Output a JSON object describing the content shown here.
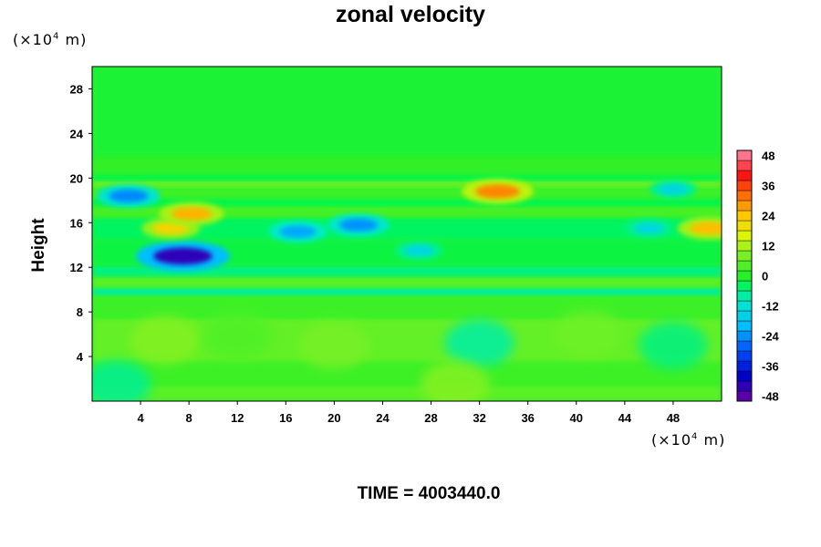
{
  "chart_data": {
    "type": "heatmap",
    "title": "zonal velocity",
    "xlabel": "",
    "ylabel": "Height",
    "x_unit_label": "(×10⁴ m)",
    "y_unit_label": "(×10⁴ m)",
    "x_unit_base": "(×10",
    "x_unit_exp": "4",
    "x_unit_tail": " m)",
    "y_unit_base": "(×10",
    "y_unit_exp": "4",
    "y_unit_tail": " m)",
    "xlim": [
      0,
      52
    ],
    "ylim": [
      0,
      30
    ],
    "x_ticks": [
      4,
      8,
      12,
      16,
      20,
      24,
      28,
      32,
      36,
      40,
      44,
      48
    ],
    "y_ticks": [
      4,
      8,
      12,
      16,
      20,
      24,
      28
    ],
    "colorbar": {
      "range": [
        -50,
        50
      ],
      "ticks": [
        48,
        36,
        24,
        12,
        0,
        -12,
        -24,
        -36,
        -48
      ],
      "colormap": "rainbow (purple-blue-cyan-green-yellow-red-pink)"
    },
    "features": [
      {
        "x": 7.5,
        "y": 13.0,
        "value": -44
      },
      {
        "x": 3.0,
        "y": 18.4,
        "value": -25
      },
      {
        "x": 6.5,
        "y": 15.5,
        "value": 22
      },
      {
        "x": 8.2,
        "y": 16.8,
        "value": 26
      },
      {
        "x": 17.0,
        "y": 15.2,
        "value": -22
      },
      {
        "x": 22.0,
        "y": 15.8,
        "value": -24
      },
      {
        "x": 33.5,
        "y": 18.8,
        "value": 30
      },
      {
        "x": 51.0,
        "y": 15.5,
        "value": 25
      },
      {
        "x": 27.0,
        "y": 13.5,
        "value": -15
      },
      {
        "x": 46.0,
        "y": 15.5,
        "value": -15
      },
      {
        "x": 48.0,
        "y": 19.0,
        "value": -15
      }
    ],
    "annotation": "TIME = 4003440.0"
  }
}
